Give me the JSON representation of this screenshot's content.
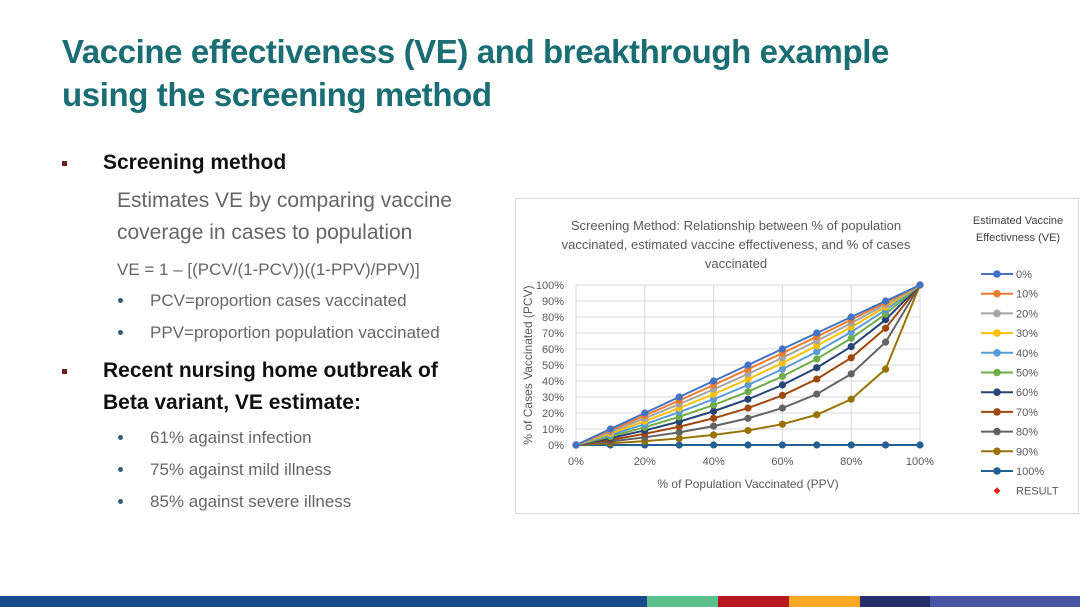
{
  "slide": {
    "title_line1": "Vaccine effectiveness (VE) and breakthrough example",
    "title_line2": "using the screening method",
    "section1": {
      "heading": "Screening method",
      "desc_line1": "Estimates VE by comparing vaccine",
      "desc_line2": "coverage in cases to population",
      "formula": "VE = 1 – [(PCV/(1-PCV))((1-PPV)/PPV)]",
      "bullets": [
        "PCV=proportion cases vaccinated",
        "PPV=proportion population vaccinated"
      ]
    },
    "section2": {
      "heading_line1": "Recent nursing home outbreak of",
      "heading_line2": "Beta variant, VE estimate:",
      "bullets": [
        "61% against infection",
        "75% against mild illness",
        "85% against severe illness"
      ]
    },
    "footer_colors": [
      "#1b4a8c",
      "#5bbf8e",
      "#b5191f",
      "#f6a821",
      "#262d6a",
      "#4656a5"
    ]
  },
  "chart_data": {
    "type": "line",
    "title_lines": [
      "Screening Method: Relationship between % of population",
      "vaccinated, estimated vaccine effectiveness, and % of cases",
      "vaccinated"
    ],
    "xlabel": "% of Population Vaccinated (PPV)",
    "ylabel": "% of Cases Vaccinated (PCV)",
    "xlim": [
      0,
      100
    ],
    "ylim": [
      0,
      100
    ],
    "x_ticks": [
      "0%",
      "20%",
      "40%",
      "60%",
      "80%",
      "100%"
    ],
    "y_ticks": [
      "0%",
      "10%",
      "20%",
      "30%",
      "40%",
      "50%",
      "60%",
      "70%",
      "80%",
      "90%",
      "100%"
    ],
    "grid": true,
    "legend_title_lines": [
      "Estimated Vaccine",
      "Effectivness (VE)"
    ],
    "legend_position": "right",
    "x": [
      0,
      10,
      20,
      30,
      40,
      50,
      60,
      70,
      80,
      90,
      100
    ],
    "series": [
      {
        "name": "0%",
        "color": "#4472c4",
        "values": [
          0,
          10,
          20,
          30,
          40,
          50,
          60,
          70,
          80,
          90,
          100
        ]
      },
      {
        "name": "10%",
        "color": "#ed7d31",
        "values": [
          0,
          9.1,
          18.4,
          27.8,
          37.5,
          47.4,
          57.4,
          67.7,
          78.3,
          89.0,
          100
        ]
      },
      {
        "name": "20%",
        "color": "#a5a5a5",
        "values": [
          0,
          8.2,
          16.7,
          25.5,
          34.8,
          44.4,
          54.5,
          65.1,
          76.2,
          87.8,
          100
        ]
      },
      {
        "name": "30%",
        "color": "#ffc000",
        "values": [
          0,
          7.2,
          14.9,
          23.1,
          31.8,
          41.2,
          51.2,
          62.0,
          73.7,
          86.3,
          100
        ]
      },
      {
        "name": "40%",
        "color": "#5b9bd5",
        "values": [
          0,
          6.3,
          13.0,
          20.5,
          28.6,
          37.5,
          47.4,
          58.3,
          70.6,
          84.4,
          100
        ]
      },
      {
        "name": "50%",
        "color": "#70ad47",
        "values": [
          0,
          5.3,
          11.1,
          17.6,
          25.0,
          33.3,
          42.9,
          53.8,
          66.7,
          81.8,
          100
        ]
      },
      {
        "name": "60%",
        "color": "#264478",
        "values": [
          0,
          4.3,
          9.1,
          14.6,
          21.1,
          28.6,
          37.5,
          48.3,
          61.5,
          78.3,
          100
        ]
      },
      {
        "name": "70%",
        "color": "#9e480e",
        "values": [
          0,
          3.2,
          7.0,
          11.4,
          16.7,
          23.1,
          31.0,
          41.2,
          54.5,
          73.0,
          100
        ]
      },
      {
        "name": "80%",
        "color": "#636363",
        "values": [
          0,
          2.2,
          4.8,
          7.9,
          11.8,
          16.7,
          23.1,
          31.8,
          44.4,
          64.3,
          100
        ]
      },
      {
        "name": "90%",
        "color": "#997300",
        "values": [
          0,
          1.1,
          2.4,
          4.1,
          6.3,
          9.1,
          13.0,
          18.9,
          28.6,
          47.4,
          100
        ]
      },
      {
        "name": "100%",
        "color": "#255e91",
        "values": [
          0,
          0,
          0,
          0,
          0,
          0,
          0,
          0,
          0,
          0,
          0
        ]
      }
    ],
    "extra_legend": {
      "name": "RESULT",
      "color": "#e02020",
      "marker": "diamond"
    }
  }
}
